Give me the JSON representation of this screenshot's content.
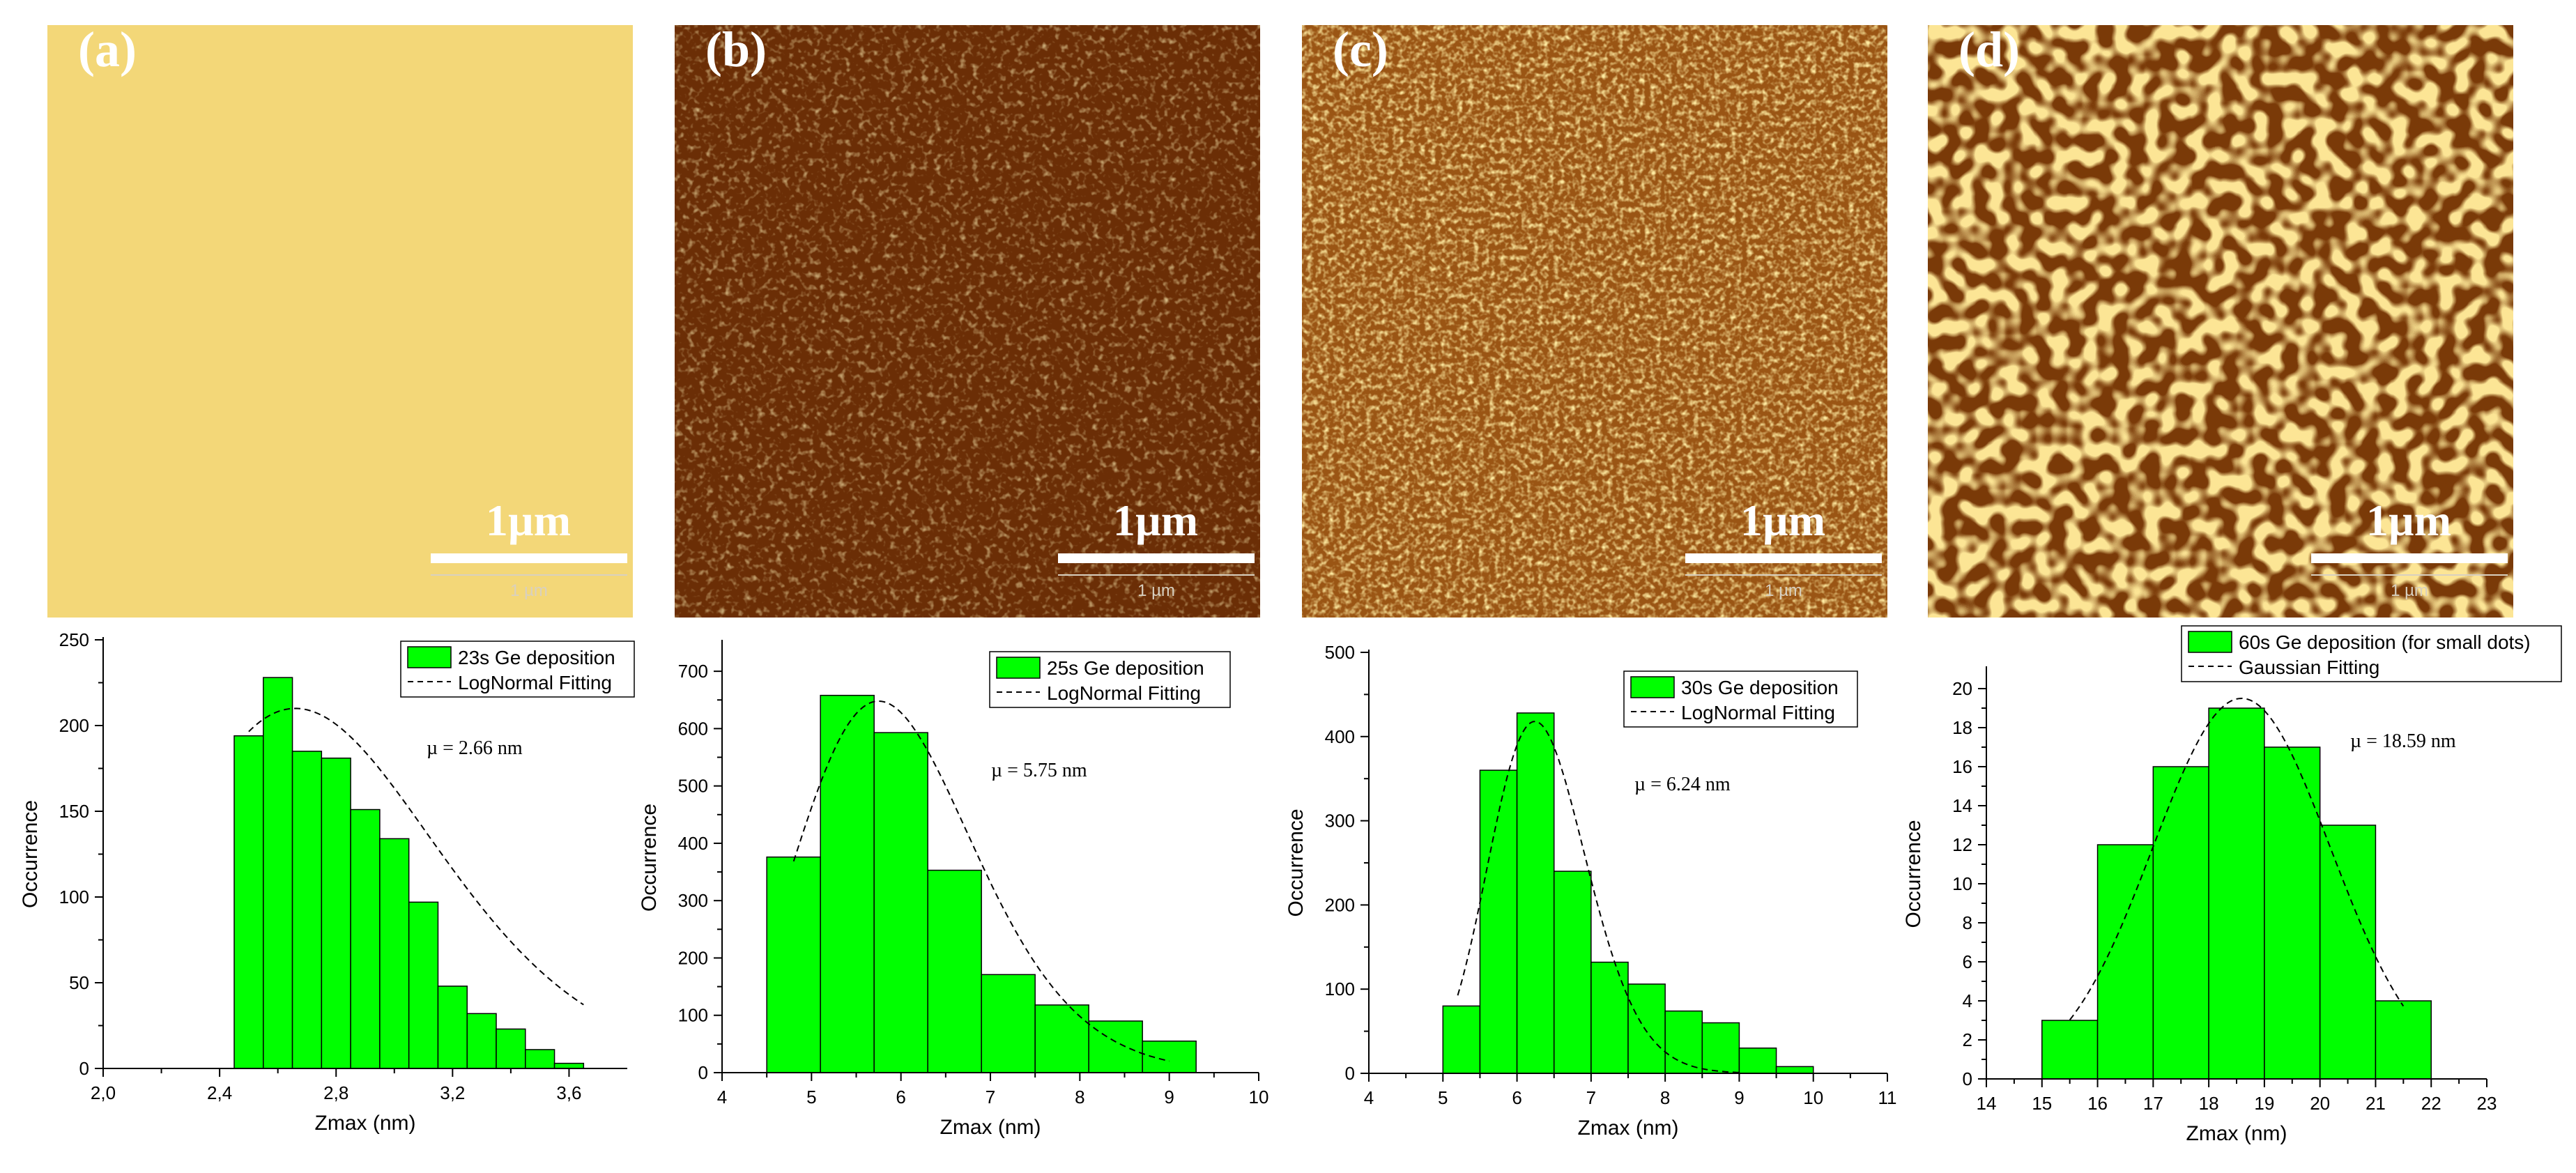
{
  "panels": [
    {
      "label": "(a)",
      "scale_big": "1µm",
      "scale_small": "1 µm"
    },
    {
      "label": "(b)",
      "scale_big": "1µm",
      "scale_small": "1 µm"
    },
    {
      "label": "(c)",
      "scale_big": "1µm",
      "scale_small": "1 µm"
    },
    {
      "label": "(d)",
      "scale_big": "1µm",
      "scale_small": "1 µm"
    }
  ],
  "colors": {
    "bar_fill": "#00ff00",
    "bar_edge": "#000000",
    "fit_line": "#000000"
  },
  "chart_data": [
    {
      "type": "bar",
      "xlabel": "Zmax (nm)",
      "ylabel": "Occurrence",
      "xlim": [
        2.0,
        3.8
      ],
      "ylim": [
        0,
        250
      ],
      "xticks": [
        2.0,
        2.4,
        2.8,
        3.2,
        3.6
      ],
      "xtick_labels": [
        "2,0",
        "2,4",
        "2,8",
        "3,2",
        "3,6"
      ],
      "yticks": [
        0,
        50,
        100,
        150,
        200,
        250
      ],
      "ytick_labels": [
        "0",
        "50",
        "100",
        "150",
        "200",
        "250"
      ],
      "bin_edges": [
        2.45,
        2.55,
        2.65,
        2.75,
        2.85,
        2.95,
        3.05,
        3.15,
        3.25,
        3.35,
        3.45,
        3.55,
        3.65
      ],
      "values": [
        194,
        228,
        185,
        181,
        151,
        134,
        97,
        48,
        32,
        23,
        11,
        3
      ],
      "fit": {
        "kind": "lognormal",
        "mu": 2.66,
        "sigma": 0.17,
        "amplitude": 210,
        "x_range": [
          2.5,
          3.65
        ]
      },
      "legend": [
        "23s Ge deposition",
        "LogNormal Fitting"
      ],
      "annotation": "µ = 2.66 nm"
    },
    {
      "type": "bar",
      "xlabel": "Zmax (nm)",
      "ylabel": "Occurrence",
      "xlim": [
        4,
        10
      ],
      "ylim": [
        0,
        750
      ],
      "xticks": [
        4,
        5,
        6,
        7,
        8,
        9,
        10
      ],
      "xtick_labels": [
        "4",
        "5",
        "6",
        "7",
        "8",
        "9",
        "10"
      ],
      "yticks": [
        0,
        100,
        200,
        300,
        400,
        500,
        600,
        700
      ],
      "ytick_labels": [
        "0",
        "100",
        "200",
        "300",
        "400",
        "500",
        "600",
        "700"
      ],
      "bin_edges": [
        4.5,
        5.1,
        5.7,
        6.3,
        6.9,
        7.5,
        8.1,
        8.7,
        9.3
      ],
      "values": [
        376,
        658,
        593,
        353,
        171,
        118,
        90,
        55
      ],
      "fit": {
        "kind": "lognormal",
        "mu": 5.75,
        "sigma": 0.17,
        "amplitude": 648,
        "x_range": [
          4.8,
          9.0
        ]
      },
      "legend": [
        "25s Ge deposition",
        "LogNormal Fitting"
      ],
      "annotation": "µ = 5.75 nm"
    },
    {
      "type": "bar",
      "xlabel": "Zmax (nm)",
      "ylabel": "Occurrence",
      "xlim": [
        4,
        11
      ],
      "ylim": [
        0,
        500
      ],
      "xticks": [
        4,
        5,
        6,
        7,
        8,
        9,
        10,
        11
      ],
      "xtick_labels": [
        "4",
        "5",
        "6",
        "7",
        "8",
        "9",
        "10",
        "11"
      ],
      "yticks": [
        0,
        100,
        200,
        300,
        400,
        500
      ],
      "ytick_labels": [
        "0",
        "100",
        "200",
        "300",
        "400",
        "500"
      ],
      "bin_edges": [
        5.0,
        5.5,
        6.0,
        6.5,
        7.0,
        7.5,
        8.0,
        8.5,
        9.0,
        9.5,
        10.0
      ],
      "values": [
        80,
        360,
        428,
        240,
        132,
        106,
        74,
        60,
        30,
        8
      ],
      "fit": {
        "kind": "lognormal",
        "mu": 6.24,
        "sigma": 0.105,
        "amplitude": 418,
        "x_range": [
          5.2,
          9.0
        ]
      },
      "legend": [
        "30s Ge deposition",
        "LogNormal Fitting"
      ],
      "annotation": "µ = 6.24 nm"
    },
    {
      "type": "bar",
      "xlabel": "Zmax (nm)",
      "ylabel": "Occurrence",
      "xlim": [
        14,
        23
      ],
      "ylim": [
        0,
        21
      ],
      "xticks": [
        14,
        15,
        16,
        17,
        18,
        19,
        20,
        21,
        22,
        23
      ],
      "xtick_labels": [
        "14",
        "15",
        "16",
        "17",
        "18",
        "19",
        "20",
        "21",
        "22",
        "23"
      ],
      "yticks": [
        0,
        2,
        4,
        6,
        8,
        10,
        12,
        14,
        16,
        18,
        20
      ],
      "ytick_labels": [
        "0",
        "2",
        "4",
        "6",
        "8",
        "10",
        "12",
        "14",
        "16",
        "18",
        "20"
      ],
      "bin_edges": [
        15,
        16,
        17,
        18,
        19,
        20,
        21,
        22
      ],
      "values": [
        3,
        12,
        16,
        19,
        17,
        13,
        4
      ],
      "fit": {
        "kind": "gaussian",
        "mu": 18.59,
        "sigma": 1.6,
        "amplitude": 19.5,
        "x_range": [
          15.5,
          21.5
        ]
      },
      "legend": [
        "60s Ge deposition (for small dots)",
        "Gaussian Fitting"
      ],
      "annotation": "µ = 18.59 nm"
    }
  ]
}
